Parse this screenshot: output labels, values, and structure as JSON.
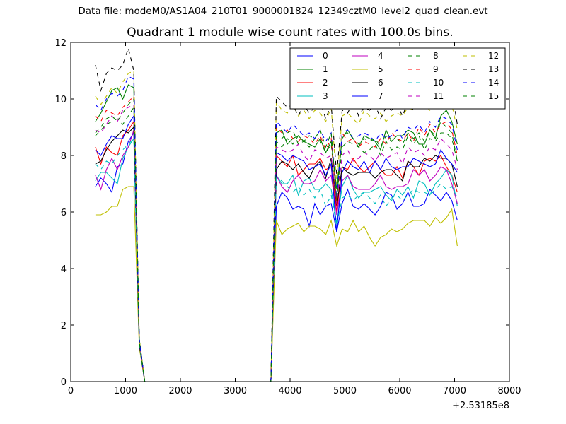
{
  "figure": {
    "suptitle": "Data file: modeM0/AS1A04_210T01_9000001824_12349cztM0_level2_quad_clean.evt",
    "title": "Quadrant 1 module wise count rates with 100.0s bins."
  },
  "chart_data": {
    "type": "line",
    "title": "Quadrant 1 module wise count rates with 100.0s bins.",
    "xlabel": "",
    "ylabel": "",
    "x_offset_label": "+2.53185e8",
    "xlim": [
      0,
      8000
    ],
    "ylim": [
      0,
      12
    ],
    "xticks": [
      "0",
      "1000",
      "2000",
      "3000",
      "4000",
      "5000",
      "6000",
      "7000",
      "8000"
    ],
    "yticks": [
      "0",
      "2",
      "4",
      "6",
      "8",
      "10",
      "12"
    ],
    "grid": false,
    "legend": {
      "placement": "top-right",
      "columns": 4
    },
    "x": [
      450,
      550,
      650,
      750,
      850,
      950,
      1050,
      1150,
      1250,
      1350,
      3650,
      3750,
      3850,
      3950,
      4050,
      4150,
      4250,
      4350,
      4450,
      4550,
      4650,
      4750,
      4850,
      4950,
      5050,
      5150,
      5250,
      5350,
      5450,
      5550,
      5650,
      5750,
      5850,
      5950,
      6050,
      6150,
      6250,
      6350,
      6450,
      6550,
      6650,
      6750,
      6850,
      6950,
      7050
    ],
    "series": [
      {
        "name": "0",
        "color": "#0000ff",
        "dash": "solid",
        "values": [
          6.9,
          7.2,
          7.0,
          6.7,
          7.6,
          7.7,
          8.5,
          8.8,
          1.4,
          0.0,
          0.0,
          6.2,
          6.7,
          6.5,
          6.1,
          6.2,
          6.1,
          5.5,
          6.3,
          5.9,
          6.2,
          6.3,
          5.3,
          6.3,
          6.8,
          6.2,
          6.1,
          6.3,
          6.1,
          5.9,
          6.2,
          6.7,
          6.6,
          6.1,
          6.3,
          6.7,
          6.2,
          6.2,
          6.3,
          6.8,
          6.6,
          6.4,
          6.7,
          6.4,
          5.7
        ]
      },
      {
        "name": "1",
        "color": "#008000",
        "dash": "solid",
        "values": [
          9.2,
          9.5,
          9.9,
          10.3,
          10.4,
          10.0,
          10.5,
          10.4,
          1.5,
          0.0,
          0.0,
          8.8,
          8.9,
          8.4,
          8.6,
          8.7,
          8.5,
          8.4,
          8.3,
          8.6,
          8.1,
          8.5,
          6.8,
          8.6,
          8.9,
          8.6,
          8.3,
          8.7,
          8.6,
          8.5,
          8.2,
          8.9,
          8.5,
          8.7,
          8.7,
          8.9,
          8.8,
          8.4,
          8.4,
          8.9,
          8.6,
          9.4,
          9.6,
          9.2,
          8.4
        ]
      },
      {
        "name": "2",
        "color": "#ff0000",
        "dash": "solid",
        "values": [
          8.3,
          7.7,
          8.3,
          8.1,
          8.0,
          8.7,
          8.9,
          9.2,
          1.4,
          0.0,
          0.0,
          8.0,
          7.8,
          7.6,
          8.0,
          7.3,
          7.5,
          7.7,
          7.7,
          7.9,
          7.5,
          7.6,
          6.0,
          7.6,
          7.5,
          7.9,
          7.6,
          7.4,
          7.6,
          7.8,
          7.5,
          7.3,
          7.3,
          7.6,
          7.2,
          7.8,
          7.6,
          7.3,
          7.8,
          7.9,
          7.8,
          8.0,
          7.6,
          7.3,
          6.7
        ]
      },
      {
        "name": "3",
        "color": "#00bfbf",
        "dash": "solid",
        "values": [
          7.1,
          7.4,
          7.4,
          7.2,
          7.0,
          7.9,
          8.3,
          8.6,
          1.4,
          0.0,
          0.0,
          7.3,
          7.0,
          7.0,
          7.3,
          6.6,
          7.1,
          7.2,
          6.8,
          6.8,
          7.0,
          6.8,
          5.6,
          6.9,
          7.3,
          6.8,
          6.5,
          6.7,
          6.7,
          6.8,
          6.9,
          6.6,
          6.4,
          6.8,
          6.6,
          6.9,
          6.5,
          7.1,
          7.0,
          6.6,
          7.0,
          7.2,
          7.5,
          7.3,
          6.2
        ]
      },
      {
        "name": "4",
        "color": "#bf00bf",
        "dash": "solid",
        "values": [
          7.3,
          6.8,
          7.5,
          7.9,
          7.5,
          8.0,
          8.3,
          8.9,
          1.3,
          0.0,
          0.0,
          7.3,
          6.9,
          6.7,
          7.1,
          7.3,
          7.0,
          7.0,
          7.1,
          7.5,
          7.1,
          7.3,
          5.9,
          7.1,
          7.3,
          6.9,
          6.8,
          6.8,
          6.8,
          7.0,
          7.3,
          6.9,
          6.8,
          6.9,
          6.9,
          7.0,
          7.5,
          7.3,
          7.5,
          7.1,
          7.3,
          7.6,
          7.5,
          7.0,
          6.3
        ]
      },
      {
        "name": "5",
        "color": "#bfbf00",
        "dash": "solid",
        "values": [
          5.9,
          5.9,
          6.0,
          6.2,
          6.2,
          6.8,
          6.9,
          6.9,
          1.2,
          0.0,
          0.0,
          5.7,
          5.2,
          5.4,
          5.5,
          5.6,
          5.3,
          5.5,
          5.5,
          5.4,
          5.2,
          5.7,
          4.8,
          5.4,
          5.3,
          5.7,
          5.3,
          5.5,
          5.1,
          4.8,
          5.1,
          5.2,
          5.4,
          5.3,
          5.4,
          5.6,
          5.7,
          5.7,
          5.7,
          5.5,
          5.8,
          5.6,
          5.8,
          6.1,
          4.8
        ]
      },
      {
        "name": "6",
        "color": "#000000",
        "dash": "solid",
        "values": [
          7.7,
          7.8,
          8.2,
          8.5,
          8.7,
          8.9,
          8.8,
          9.0,
          1.3,
          0.0,
          0.0,
          7.5,
          7.8,
          7.7,
          7.5,
          7.7,
          7.4,
          7.2,
          7.6,
          7.8,
          7.2,
          7.9,
          6.2,
          7.6,
          7.4,
          7.3,
          7.4,
          7.4,
          7.4,
          7.2,
          7.4,
          7.5,
          7.5,
          7.3,
          7.1,
          7.8,
          7.6,
          7.6,
          7.9,
          7.8,
          8.0,
          7.9,
          7.9,
          7.7,
          6.9
        ]
      },
      {
        "name": "7",
        "color": "#0000ff",
        "dash": "solid",
        "values": [
          8.2,
          8.0,
          8.4,
          8.7,
          8.6,
          8.6,
          9.1,
          9.4,
          1.4,
          0.0,
          0.0,
          8.1,
          8.0,
          7.8,
          8.0,
          7.9,
          7.8,
          7.5,
          7.6,
          7.7,
          7.3,
          7.7,
          5.3,
          7.4,
          7.8,
          7.6,
          7.5,
          7.8,
          7.4,
          7.8,
          7.5,
          7.9,
          7.6,
          7.5,
          7.6,
          7.6,
          7.9,
          7.8,
          7.7,
          7.6,
          7.7,
          8.2,
          7.9,
          7.7,
          7.4
        ]
      },
      {
        "name": "8",
        "color": "#008000",
        "dash": "dashed",
        "values": [
          8.7,
          8.9,
          9.1,
          9.2,
          9.3,
          9.1,
          9.4,
          9.7,
          1.5,
          0.0,
          0.0,
          8.5,
          8.3,
          8.6,
          8.4,
          8.7,
          8.5,
          8.3,
          8.6,
          8.5,
          8.1,
          8.4,
          6.4,
          8.3,
          8.5,
          8.4,
          8.3,
          8.1,
          8.2,
          8.4,
          8.0,
          8.5,
          8.2,
          8.3,
          8.2,
          8.7,
          8.4,
          8.7,
          8.2,
          8.6,
          8.5,
          8.8,
          8.8,
          8.6,
          7.8
        ]
      },
      {
        "name": "9",
        "color": "#ff0000",
        "dash": "dashed",
        "values": [
          9.4,
          9.2,
          9.6,
          9.5,
          9.4,
          9.7,
          9.9,
          10.1,
          1.4,
          0.0,
          0.0,
          9.0,
          8.8,
          8.9,
          8.6,
          8.5,
          8.7,
          8.6,
          8.4,
          8.7,
          8.2,
          8.6,
          6.2,
          8.8,
          8.5,
          8.6,
          8.3,
          8.5,
          8.4,
          8.3,
          8.6,
          8.4,
          8.8,
          8.6,
          8.5,
          8.8,
          8.5,
          9.0,
          8.7,
          9.1,
          8.8,
          9.1,
          9.2,
          8.9,
          8.0
        ]
      },
      {
        "name": "10",
        "color": "#00bfbf",
        "dash": "dashed",
        "values": [
          7.7,
          7.5,
          7.8,
          7.7,
          8.0,
          8.2,
          8.4,
          8.6,
          1.3,
          0.0,
          0.0,
          7.2,
          7.1,
          6.9,
          6.7,
          6.9,
          6.6,
          6.8,
          6.5,
          6.8,
          6.2,
          6.6,
          5.5,
          6.5,
          6.6,
          6.4,
          6.6,
          6.7,
          6.5,
          6.3,
          6.6,
          6.2,
          6.5,
          6.6,
          6.4,
          6.6,
          6.8,
          6.7,
          6.7,
          6.6,
          6.8,
          7.0,
          6.8,
          6.9,
          6.5
        ]
      },
      {
        "name": "11",
        "color": "#bf00bf",
        "dash": "dashed",
        "values": [
          8.9,
          8.8,
          9.1,
          9.4,
          9.2,
          9.6,
          9.7,
          9.8,
          1.4,
          0.0,
          0.0,
          8.3,
          8.2,
          8.1,
          8.2,
          8.4,
          8.0,
          7.8,
          8.2,
          8.1,
          7.9,
          8.0,
          6.3,
          8.0,
          8.2,
          7.8,
          7.9,
          8.1,
          8.0,
          7.8,
          8.1,
          7.9,
          8.0,
          8.1,
          7.7,
          8.3,
          8.1,
          8.2,
          8.0,
          8.3,
          8.2,
          8.6,
          8.4,
          8.2,
          7.5
        ]
      },
      {
        "name": "12",
        "color": "#bfbf00",
        "dash": "dashed",
        "values": [
          10.1,
          9.8,
          10.1,
          10.4,
          10.2,
          10.6,
          10.9,
          11.0,
          1.5,
          0.0,
          0.0,
          9.9,
          9.6,
          9.5,
          9.8,
          9.4,
          9.6,
          9.3,
          9.6,
          9.5,
          9.2,
          9.7,
          7.0,
          9.4,
          9.5,
          9.3,
          9.1,
          9.6,
          9.4,
          9.3,
          9.5,
          9.2,
          9.4,
          9.5,
          9.4,
          9.7,
          9.6,
          9.9,
          9.8,
          9.6,
          10.0,
          10.2,
          10.0,
          9.8,
          8.9
        ]
      },
      {
        "name": "13",
        "color": "#000000",
        "dash": "dashed",
        "values": [
          11.2,
          10.3,
          10.9,
          11.1,
          11.0,
          11.2,
          11.8,
          11.0,
          1.5,
          0.0,
          0.0,
          10.1,
          9.9,
          9.7,
          9.8,
          9.4,
          9.8,
          9.5,
          9.7,
          9.9,
          9.3,
          9.8,
          7.3,
          9.6,
          9.5,
          9.9,
          9.4,
          9.7,
          9.6,
          9.8,
          9.3,
          9.7,
          9.6,
          9.8,
          9.4,
          9.9,
          9.6,
          9.7,
          9.9,
          10.3,
          9.7,
          10.3,
          10.8,
          10.3,
          9.1
        ]
      },
      {
        "name": "14",
        "color": "#0000ff",
        "dash": "dashed",
        "values": [
          9.8,
          9.6,
          10.0,
          10.2,
          10.1,
          10.3,
          10.8,
          10.7,
          1.5,
          0.0,
          0.0,
          9.2,
          9.0,
          8.8,
          9.1,
          8.9,
          8.7,
          8.8,
          8.6,
          8.9,
          8.5,
          8.8,
          6.5,
          8.8,
          8.9,
          8.6,
          8.7,
          8.8,
          8.7,
          8.5,
          8.8,
          8.6,
          8.7,
          8.9,
          8.6,
          9.0,
          8.9,
          9.1,
          8.8,
          9.2,
          9.0,
          9.4,
          9.3,
          9.1,
          8.2
        ]
      },
      {
        "name": "15",
        "color": "#008000",
        "dash": "dashed",
        "values": [
          8.8,
          9.0,
          9.3,
          9.4,
          9.2,
          9.5,
          9.8,
          10.0,
          1.4,
          0.0,
          0.0,
          8.7,
          8.6,
          8.8,
          8.9,
          8.4,
          8.5,
          8.7,
          8.6,
          8.9,
          8.3,
          8.8,
          6.4,
          8.7,
          8.8,
          8.6,
          8.4,
          8.6,
          8.5,
          8.6,
          8.3,
          8.7,
          8.5,
          8.6,
          8.4,
          8.8,
          8.6,
          8.8,
          8.5,
          8.9,
          8.7,
          9.2,
          9.0,
          8.8,
          7.8
        ]
      }
    ]
  }
}
